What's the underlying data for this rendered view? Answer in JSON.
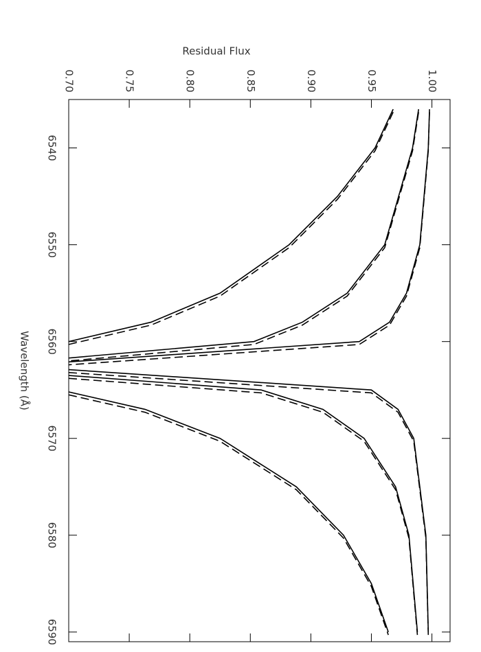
{
  "chart_data": {
    "type": "line",
    "xlabel": "Wavelength (Å)",
    "ylabel": "Residual Flux",
    "xlim": [
      6535,
      6591
    ],
    "xticks": [
      6540,
      6550,
      6560,
      6570,
      6580,
      6590
    ],
    "ylim": [
      0.7,
      1.015
    ],
    "yticks": [
      {
        "value": 0.7,
        "label": "0.70"
      },
      0.75,
      {
        "value": 0.8,
        "label": "0.80"
      },
      0.85,
      {
        "value": 0.9,
        "label": "0.90"
      },
      0.95,
      {
        "value": 1.0,
        "label": "1.00"
      }
    ],
    "series": [
      {
        "color": "#000000",
        "style": "solid",
        "x": [
          6536,
          6540,
          6550,
          6555,
          6558,
          6560,
          6562.1,
          null,
          6562.9,
          6565,
          6567,
          6570,
          6580,
          6590
        ],
        "values": [
          0.998,
          0.997,
          0.99,
          0.979,
          0.965,
          0.94,
          0.7,
          null,
          0.7,
          0.95,
          0.972,
          0.985,
          0.995,
          0.997
        ]
      },
      {
        "color": "#000000",
        "style": "dashed",
        "x": [
          6536.3,
          6540.3,
          6550.3,
          6555.3,
          6558.3,
          6560.3,
          6562.4,
          null,
          6563.2,
          6565.3,
          6567.3,
          6570.3,
          6580.3,
          6590.3
        ],
        "values": [
          0.998,
          0.997,
          0.99,
          0.979,
          0.965,
          0.94,
          0.7,
          null,
          0.7,
          0.95,
          0.972,
          0.985,
          0.995,
          0.997
        ]
      },
      {
        "color": "#000000",
        "style": "solid",
        "x": [
          6536,
          6540,
          6550,
          6555,
          6558,
          6560,
          6561.7,
          null,
          6563.5,
          6565,
          6567,
          6570,
          6575,
          6580,
          6590
        ],
        "values": [
          0.989,
          0.984,
          0.961,
          0.93,
          0.893,
          0.853,
          0.7,
          null,
          0.7,
          0.859,
          0.91,
          0.944,
          0.97,
          0.981,
          0.988
        ]
      },
      {
        "color": "#000000",
        "style": "dashed",
        "x": [
          6536.3,
          6540.3,
          6550.3,
          6555.3,
          6558.3,
          6560.3,
          6562.0,
          null,
          6563.8,
          6565.3,
          6567.3,
          6570.3,
          6575.3,
          6580.3,
          6590.3
        ],
        "values": [
          0.989,
          0.984,
          0.961,
          0.93,
          0.893,
          0.853,
          0.7,
          null,
          0.7,
          0.859,
          0.91,
          0.944,
          0.97,
          0.981,
          0.988
        ]
      },
      {
        "color": "#000000",
        "style": "solid",
        "x": [
          6536,
          6540,
          6545,
          6550,
          6555,
          6558,
          6560,
          null,
          6565.2,
          6567,
          6570,
          6575,
          6580,
          6585,
          6590
        ],
        "values": [
          0.968,
          0.953,
          0.922,
          0.882,
          0.825,
          0.768,
          0.7,
          null,
          0.7,
          0.763,
          0.825,
          0.888,
          0.927,
          0.95,
          0.964
        ]
      },
      {
        "color": "#000000",
        "style": "dashed",
        "x": [
          6536.3,
          6540.3,
          6545.3,
          6550.3,
          6555.3,
          6558.3,
          6560.3,
          null,
          6565.5,
          6567.3,
          6570.3,
          6575.3,
          6580.3,
          6585.3,
          6590.3
        ],
        "values": [
          0.968,
          0.953,
          0.922,
          0.882,
          0.825,
          0.768,
          0.7,
          null,
          0.7,
          0.763,
          0.825,
          0.888,
          0.927,
          0.95,
          0.964
        ]
      }
    ]
  }
}
